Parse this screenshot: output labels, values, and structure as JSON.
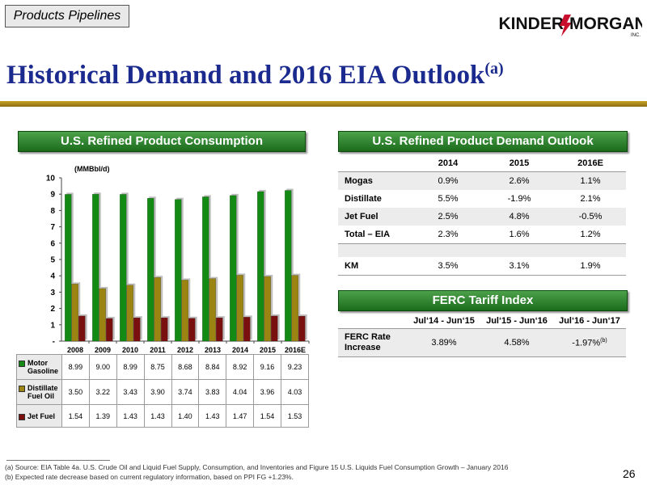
{
  "header": {
    "section_tag": "Products Pipelines",
    "logo": {
      "left": "KINDER",
      "right": "MORGAN",
      "sub": "INC."
    },
    "title": "Historical Demand and 2016 EIA Outlook",
    "title_sup": "(a)"
  },
  "consumption": {
    "heading": "U.S. Refined Product Consumption",
    "unit": "(MMBbl/d)",
    "colors": {
      "motor_gasoline": "#138a13",
      "distillate": "#9c8413",
      "jet_fuel": "#7a0f0f"
    }
  },
  "chart_data": {
    "type": "bar",
    "categories": [
      "2008",
      "2009",
      "2010",
      "2011",
      "2012",
      "2013",
      "2014",
      "2015",
      "2016E"
    ],
    "series": [
      {
        "name": "Motor Gasoline",
        "values": [
          8.99,
          9.0,
          8.99,
          8.75,
          8.68,
          8.84,
          8.92,
          9.16,
          9.23
        ]
      },
      {
        "name": "Distillate Fuel Oil",
        "values": [
          3.5,
          3.22,
          3.43,
          3.9,
          3.74,
          3.83,
          4.04,
          3.96,
          4.03
        ]
      },
      {
        "name": "Jet Fuel",
        "values": [
          1.54,
          1.39,
          1.43,
          1.43,
          1.4,
          1.43,
          1.47,
          1.54,
          1.53
        ]
      }
    ],
    "ylabel": "(MMBbl/d)",
    "ylim": [
      0,
      10
    ],
    "yticks": [
      "-",
      "1",
      "2",
      "3",
      "4",
      "5",
      "6",
      "7",
      "8",
      "9",
      "10"
    ],
    "grid": false,
    "legend": "data-table-below"
  },
  "data_table": {
    "rows": [
      {
        "key": "motor_gasoline",
        "label_line1": "Motor",
        "label_line2": "Gasoline",
        "cells": [
          "8.99",
          "9.00",
          "8.99",
          "8.75",
          "8.68",
          "8.84",
          "8.92",
          "9.16",
          "9.23"
        ]
      },
      {
        "key": "distillate",
        "label_line1": "Distillate",
        "label_line2": "Fuel Oil",
        "cells": [
          "3.50",
          "3.22",
          "3.43",
          "3.90",
          "3.74",
          "3.83",
          "4.04",
          "3.96",
          "4.03"
        ]
      },
      {
        "key": "jet_fuel",
        "label_line1": "Jet Fuel",
        "label_line2": "",
        "cells": [
          "1.54",
          "1.39",
          "1.43",
          "1.43",
          "1.40",
          "1.43",
          "1.47",
          "1.54",
          "1.53"
        ]
      }
    ]
  },
  "outlook": {
    "heading": "U.S. Refined Product Demand Outlook",
    "columns": [
      "2014",
      "2015",
      "2016E"
    ],
    "rows": [
      {
        "label": "Mogas",
        "values": [
          "0.9%",
          "2.6%",
          "1.1%"
        ]
      },
      {
        "label": "Distillate",
        "values": [
          "5.5%",
          "-1.9%",
          "2.1%"
        ]
      },
      {
        "label": "Jet Fuel",
        "values": [
          "2.5%",
          "4.8%",
          "-0.5%"
        ]
      },
      {
        "label": "Total – EIA",
        "values": [
          "2.3%",
          "1.6%",
          "1.2%"
        ]
      },
      {
        "label": "KM",
        "values": [
          "3.5%",
          "3.1%",
          "1.9%"
        ]
      }
    ]
  },
  "ferc": {
    "heading": "FERC Tariff Index",
    "columns": [
      "Jul‘14 - Jun‘15",
      "Jul‘15 - Jun‘16",
      "Jul‘16 - Jun‘17"
    ],
    "row_label_line1": "FERC Rate",
    "row_label_line2": "Increase",
    "values": [
      "3.89%",
      "4.58%",
      "-1.97%"
    ],
    "last_sup": "(b)"
  },
  "footnotes": {
    "a": "(a)  Source: EIA Table 4a. U.S. Crude Oil and Liquid Fuel Supply, Consumption, and Inventories and Figure 15 U.S. Liquids Fuel Consumption Growth – January 2016",
    "b": "(b)  Expected rate decrease based on current regulatory information, based on PPI FG +1.23%."
  },
  "page_number": "26"
}
